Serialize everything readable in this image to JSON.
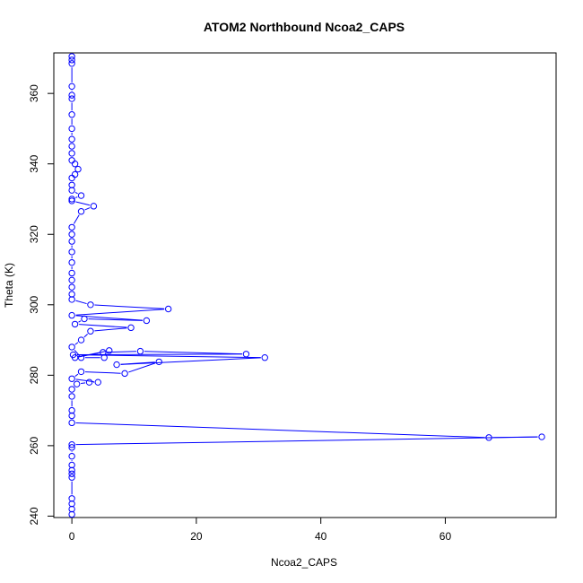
{
  "chart_data": {
    "type": "line",
    "title": "ATOM2 Northbound Ncoa2_CAPS",
    "xlabel": "Ncoa2_CAPS",
    "ylabel": "Theta (K)",
    "xlim": [
      -2.9,
      77.8
    ],
    "ylim": [
      239.6,
      371.5
    ],
    "xticks": [
      0,
      20,
      40,
      60
    ],
    "yticks": [
      240,
      260,
      280,
      300,
      320,
      340,
      360
    ],
    "grid": false,
    "legend": "none",
    "marker": "open-circle",
    "color": "#0000ff",
    "series": [
      {
        "points": [
          [
            0,
            240.5
          ],
          [
            0,
            242.0
          ],
          [
            0,
            243.5
          ],
          [
            0,
            245.0
          ],
          [
            0,
            251.0
          ],
          [
            0,
            252.0
          ],
          [
            0,
            253.0
          ],
          [
            0,
            254.5
          ],
          [
            0,
            257.0
          ],
          [
            0,
            259.5
          ],
          [
            0,
            260.3
          ],
          [
            75.5,
            262.5
          ],
          [
            67,
            262.3
          ],
          [
            0,
            266.5
          ],
          [
            0,
            268.5
          ],
          [
            0,
            270.0
          ],
          [
            0,
            274.0
          ],
          [
            0,
            276.0
          ],
          [
            0.8,
            277.5
          ],
          [
            2.8,
            278.0
          ],
          [
            4.2,
            278.0
          ],
          [
            0,
            279.0
          ],
          [
            1.5,
            281.0
          ],
          [
            8.5,
            280.5
          ],
          [
            14,
            283.8
          ],
          [
            7.2,
            283.0
          ],
          [
            31,
            285.0
          ],
          [
            0.2,
            285.8
          ],
          [
            28,
            286.0
          ],
          [
            11,
            286.8
          ],
          [
            5,
            286.5
          ],
          [
            0.5,
            285.0
          ],
          [
            6,
            287.0
          ],
          [
            5.2,
            285.0
          ],
          [
            1.5,
            285.0
          ],
          [
            0,
            288.0
          ],
          [
            1.5,
            290.0
          ],
          [
            3,
            292.5
          ],
          [
            9.5,
            293.5
          ],
          [
            0.5,
            294.5
          ],
          [
            2,
            296.0
          ],
          [
            12,
            295.5
          ],
          [
            0,
            297.0
          ],
          [
            15.5,
            298.8
          ],
          [
            3,
            300.0
          ],
          [
            0,
            301.5
          ],
          [
            0,
            303.0
          ],
          [
            0,
            305.0
          ],
          [
            0,
            307.0
          ],
          [
            0,
            309.0
          ],
          [
            0,
            312.0
          ],
          [
            0,
            315.0
          ],
          [
            0,
            318.0
          ],
          [
            0,
            320.0
          ],
          [
            0,
            322.0
          ],
          [
            1.5,
            326.5
          ],
          [
            3.5,
            328.0
          ],
          [
            0,
            329.5
          ],
          [
            0,
            330.0
          ],
          [
            1.5,
            331.0
          ],
          [
            0,
            332.5
          ],
          [
            0,
            334.0
          ],
          [
            0,
            336.0
          ],
          [
            0.5,
            337.0
          ],
          [
            1,
            338.5
          ],
          [
            0.5,
            340.0
          ],
          [
            0,
            341.0
          ],
          [
            0,
            343.0
          ],
          [
            0,
            345.0
          ],
          [
            0,
            347.0
          ],
          [
            0,
            350.0
          ],
          [
            0,
            354.0
          ],
          [
            0,
            358.5
          ],
          [
            0,
            359.5
          ],
          [
            0,
            362.0
          ],
          [
            0,
            368.5
          ],
          [
            0,
            369.5
          ],
          [
            0,
            370.5
          ]
        ]
      }
    ]
  }
}
